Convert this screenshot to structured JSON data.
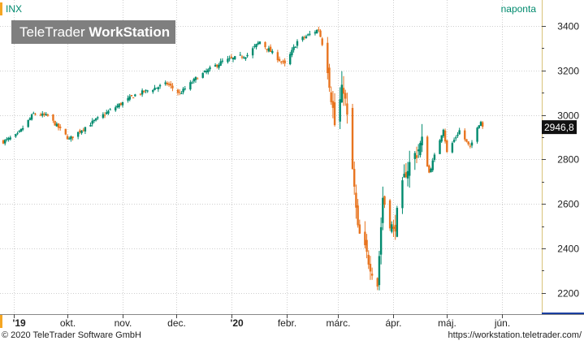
{
  "header": {
    "symbol": "INX",
    "interval": "naponta"
  },
  "logo": {
    "brand": "TeleTrader",
    "product": "WorkStation"
  },
  "footer": {
    "copyright": "© 2020 TeleTrader Software GmbH",
    "url": "https://workstation.teletrader.com/"
  },
  "colors": {
    "up": "#008a6e",
    "down": "#e8741f",
    "last_price_bg": "#111111",
    "accent": "#f5a623",
    "axis_bottom": "#1a3fa0"
  },
  "chart_data": {
    "type": "candlestick",
    "symbol": "INX",
    "interval": "naponta",
    "ylim": [
      2130,
      3480
    ],
    "yticks": [
      2200,
      2400,
      2600,
      2800,
      3000,
      3200,
      3400
    ],
    "ytick_labels": [
      "2200",
      "2400",
      "2600",
      "2800",
      "3000",
      "3200",
      "3400"
    ],
    "xlim": [
      "2019-08-26",
      "2020-06-20"
    ],
    "xticks": [
      {
        "label": "'19",
        "date": "2019-09-01"
      },
      {
        "label": "okt.",
        "date": "2019-10-01"
      },
      {
        "label": "nov.",
        "date": "2019-11-01"
      },
      {
        "label": "dec.",
        "date": "2019-12-01"
      },
      {
        "label": "'20",
        "date": "2020-01-01"
      },
      {
        "label": "febr.",
        "date": "2020-02-01"
      },
      {
        "label": "márc.",
        "date": "2020-03-01"
      },
      {
        "label": "ápr.",
        "date": "2020-04-01"
      },
      {
        "label": "máj.",
        "date": "2020-05-01"
      },
      {
        "label": "jún.",
        "date": "2020-06-01"
      }
    ],
    "grid": true,
    "last_value": 2946.8,
    "last_value_label": "2946,8",
    "close_path": [
      {
        "date": "2019-08-26",
        "close": 2880
      },
      {
        "date": "2019-09-03",
        "close": 2910
      },
      {
        "date": "2019-09-12",
        "close": 3005
      },
      {
        "date": "2019-09-20",
        "close": 2995
      },
      {
        "date": "2019-10-02",
        "close": 2890
      },
      {
        "date": "2019-10-10",
        "close": 2940
      },
      {
        "date": "2019-10-25",
        "close": 3020
      },
      {
        "date": "2019-11-08",
        "close": 3090
      },
      {
        "date": "2019-11-26",
        "close": 3140
      },
      {
        "date": "2019-12-03",
        "close": 3095
      },
      {
        "date": "2019-12-13",
        "close": 3170
      },
      {
        "date": "2019-12-27",
        "close": 3240
      },
      {
        "date": "2020-01-10",
        "close": 3270
      },
      {
        "date": "2020-01-17",
        "close": 3330
      },
      {
        "date": "2020-01-31",
        "close": 3225
      },
      {
        "date": "2020-02-07",
        "close": 3330
      },
      {
        "date": "2020-02-19",
        "close": 3385
      },
      {
        "date": "2020-02-24",
        "close": 3225
      },
      {
        "date": "2020-02-28",
        "close": 2955
      },
      {
        "date": "2020-03-04",
        "close": 3130
      },
      {
        "date": "2020-03-09",
        "close": 2750
      },
      {
        "date": "2020-03-12",
        "close": 2480
      },
      {
        "date": "2020-03-16",
        "close": 2390
      },
      {
        "date": "2020-03-23",
        "close": 2240
      },
      {
        "date": "2020-03-26",
        "close": 2630
      },
      {
        "date": "2020-04-01",
        "close": 2470
      },
      {
        "date": "2020-04-08",
        "close": 2750
      },
      {
        "date": "2020-04-17",
        "close": 2875
      },
      {
        "date": "2020-04-21",
        "close": 2740
      },
      {
        "date": "2020-04-29",
        "close": 2940
      },
      {
        "date": "2020-05-01",
        "close": 2830
      },
      {
        "date": "2020-05-08",
        "close": 2930
      },
      {
        "date": "2020-05-14",
        "close": 2850
      },
      {
        "date": "2020-05-18",
        "close": 2950
      },
      {
        "date": "2020-05-20",
        "close": 2971
      },
      {
        "date": "2020-05-21",
        "close": 2946.8
      }
    ]
  }
}
